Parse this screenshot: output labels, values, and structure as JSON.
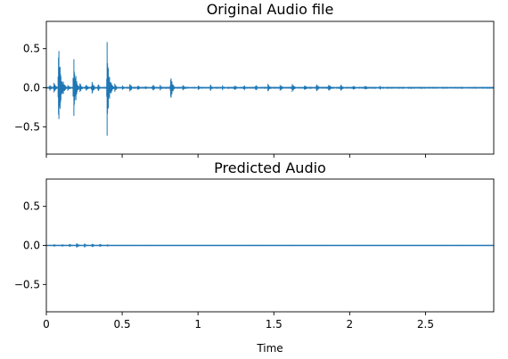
{
  "chart_data": [
    {
      "type": "line",
      "title": "Original Audio file",
      "xlabel": "",
      "ylabel": "",
      "xlim": [
        0,
        2.95
      ],
      "ylim": [
        -0.85,
        0.85
      ],
      "xticks": [
        0,
        0.5,
        1,
        1.5,
        2,
        2.5
      ],
      "xtick_labels": [],
      "yticks": [
        0.5,
        0.0,
        -0.5
      ],
      "ytick_labels": [
        "0.5",
        "0.0",
        "−0.5"
      ],
      "series": [
        {
          "color": "#1f77b4",
          "baseline": 0.0,
          "x": [
            0.02,
            0.05,
            0.08,
            0.11,
            0.14,
            0.18,
            0.22,
            0.26,
            0.3,
            0.34,
            0.4,
            0.45,
            0.5,
            0.55,
            0.6,
            0.65,
            0.7,
            0.75,
            0.82,
            0.9,
            1.0,
            1.08,
            1.16,
            1.24,
            1.3,
            1.38,
            1.46,
            1.54,
            1.62,
            1.7,
            1.78,
            1.86,
            1.94,
            2.02,
            2.1,
            2.2,
            2.35,
            2.55
          ],
          "amplitude": [
            0.05,
            0.08,
            0.76,
            0.1,
            0.06,
            0.53,
            0.08,
            0.06,
            0.1,
            0.06,
            0.63,
            0.06,
            0.04,
            0.07,
            0.05,
            0.04,
            0.06,
            0.04,
            0.16,
            0.04,
            0.04,
            0.05,
            0.05,
            0.05,
            0.05,
            0.06,
            0.06,
            0.06,
            0.07,
            0.06,
            0.07,
            0.06,
            0.06,
            0.05,
            0.05,
            0.03,
            0.02,
            0.015
          ],
          "floor": 0.012
        }
      ]
    },
    {
      "type": "line",
      "title": "Predicted Audio",
      "xlabel": "Time",
      "ylabel": "",
      "xlim": [
        0,
        2.95
      ],
      "ylim": [
        -0.85,
        0.85
      ],
      "xticks": [
        0,
        0.5,
        1,
        1.5,
        2,
        2.5
      ],
      "xtick_labels": [
        "0",
        "0.5",
        "1",
        "1.5",
        "2",
        "2.5"
      ],
      "yticks": [
        0.5,
        0.0,
        -0.5
      ],
      "ytick_labels": [
        "0.5",
        "0.0",
        "−0.5"
      ],
      "series": [
        {
          "color": "#1f77b4",
          "baseline": 0.0,
          "x": [
            0.05,
            0.1,
            0.15,
            0.2,
            0.25,
            0.3,
            0.35,
            0.4
          ],
          "amplitude": [
            0.02,
            0.025,
            0.03,
            0.04,
            0.035,
            0.03,
            0.03,
            0.02
          ],
          "floor": 0.006
        }
      ]
    }
  ]
}
